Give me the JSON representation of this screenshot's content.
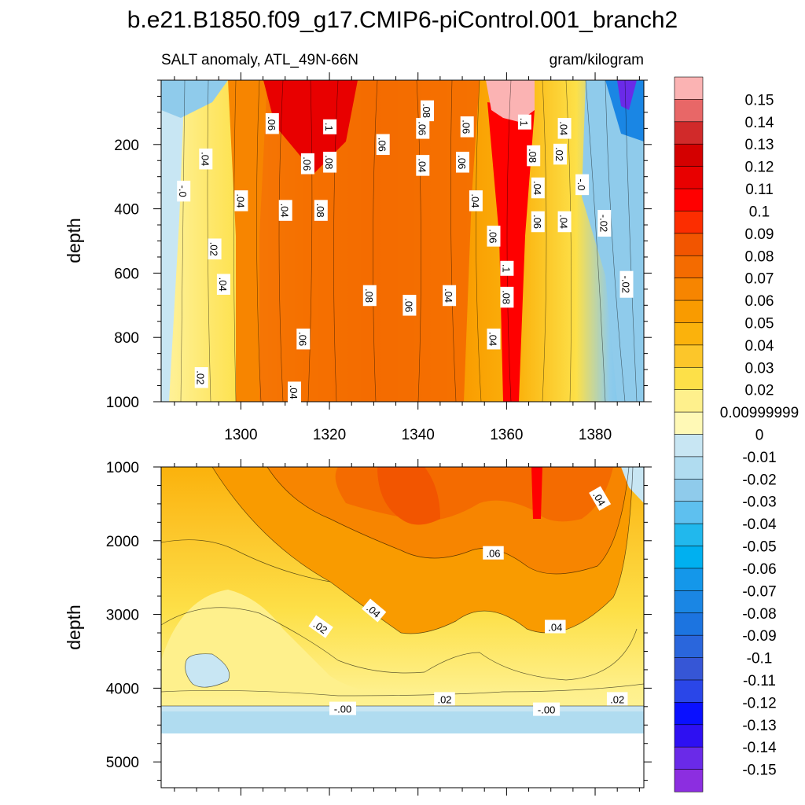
{
  "chart_data": {
    "type": "heatmap",
    "title": "b.e21.B1850.f09_g17.CMIP6-piControl.001_branch2",
    "subtitle_left": "SALT anomaly, ATL_49N-66N",
    "subtitle_right": "gram/kilogram",
    "ylabel": "depth",
    "xlim": [
      1282,
      1391
    ],
    "x_ticks": [
      "1300",
      "1320",
      "1340",
      "1360",
      "1380"
    ],
    "x_tick_values": [
      1300,
      1320,
      1340,
      1360,
      1380
    ],
    "top_panel": {
      "ylim": [
        0,
        1000
      ],
      "y_ticks": [
        "200",
        "400",
        "600",
        "800",
        "1000"
      ],
      "y_tick_values": [
        200,
        400,
        600,
        800,
        1000
      ],
      "contour_labels": [
        {
          "text": ".06",
          "x": 1307,
          "y": 135
        },
        {
          "text": ".1",
          "x": 1320,
          "y": 145
        },
        {
          "text": ".08",
          "x": 1342,
          "y": 95
        },
        {
          "text": ".06",
          "x": 1351,
          "y": 145
        },
        {
          "text": ".06",
          "x": 1341,
          "y": 150
        },
        {
          "text": ".1",
          "x": 1364,
          "y": 130
        },
        {
          "text": ".04",
          "x": 1373,
          "y": 150
        },
        {
          "text": ".04",
          "x": 1292,
          "y": 245
        },
        {
          "text": ".06",
          "x": 1315,
          "y": 260
        },
        {
          "text": ".08",
          "x": 1320,
          "y": 255
        },
        {
          "text": ".06",
          "x": 1332,
          "y": 200
        },
        {
          "text": ".04",
          "x": 1341,
          "y": 265
        },
        {
          "text": ".06",
          "x": 1350,
          "y": 255
        },
        {
          "text": ".08",
          "x": 1366,
          "y": 235
        },
        {
          "text": ".02",
          "x": 1372,
          "y": 230
        },
        {
          "text": "-.0",
          "x": 1377,
          "y": 325
        },
        {
          "text": "-.0",
          "x": 1287,
          "y": 345
        },
        {
          "text": ".04",
          "x": 1300,
          "y": 375
        },
        {
          "text": ".04",
          "x": 1310,
          "y": 405
        },
        {
          "text": ".08",
          "x": 1318,
          "y": 405
        },
        {
          "text": ".04",
          "x": 1367,
          "y": 335
        },
        {
          "text": ".04",
          "x": 1353,
          "y": 375
        },
        {
          "text": ".06",
          "x": 1367,
          "y": 440
        },
        {
          "text": ".04",
          "x": 1373,
          "y": 440
        },
        {
          "text": "-.02",
          "x": 1382,
          "y": 445
        },
        {
          "text": ".02",
          "x": 1294,
          "y": 525
        },
        {
          "text": ".06",
          "x": 1357,
          "y": 485
        },
        {
          "text": ".1",
          "x": 1360,
          "y": 585
        },
        {
          "text": ".04",
          "x": 1296,
          "y": 635
        },
        {
          "text": "-.02",
          "x": 1387,
          "y": 635
        },
        {
          "text": ".08",
          "x": 1329,
          "y": 670
        },
        {
          "text": ".06",
          "x": 1338,
          "y": 700
        },
        {
          "text": ".04",
          "x": 1347,
          "y": 670
        },
        {
          "text": ".08",
          "x": 1360,
          "y": 675
        },
        {
          "text": ".06",
          "x": 1314,
          "y": 805
        },
        {
          "text": ".04",
          "x": 1357,
          "y": 805
        },
        {
          "text": ".02",
          "x": 1291,
          "y": 925
        },
        {
          "text": ".04",
          "x": 1312,
          "y": 970
        }
      ]
    },
    "bottom_panel": {
      "ylim": [
        1000,
        5350
      ],
      "y_ticks": [
        "1000",
        "2000",
        "3000",
        "4000",
        "5000"
      ],
      "y_tick_values": [
        1000,
        2000,
        3000,
        4000,
        5000
      ],
      "ocean_floor": 4620,
      "contour_labels": [
        {
          "text": ".04",
          "x": 1381,
          "y": 1430
        },
        {
          "text": ".06",
          "x": 1357,
          "y": 2170
        },
        {
          "text": ".04",
          "x": 1330,
          "y": 2950
        },
        {
          "text": ".02",
          "x": 1318,
          "y": 3170
        },
        {
          "text": ".04",
          "x": 1371,
          "y": 3170
        },
        {
          "text": "-.00",
          "x": 1323,
          "y": 4280
        },
        {
          "text": ".02",
          "x": 1346,
          "y": 4150
        },
        {
          "text": "-.00",
          "x": 1369,
          "y": 4290
        },
        {
          "text": ".02",
          "x": 1385,
          "y": 4150
        }
      ]
    },
    "colorbar": {
      "labels": [
        "0.15",
        "0.14",
        "0.13",
        "0.12",
        "0.11",
        "0.1",
        "0.09",
        "0.08",
        "0.07",
        "0.06",
        "0.05",
        "0.04",
        "0.03",
        "0.02",
        "0.00999999",
        "0",
        "-0.01",
        "-0.02",
        "-0.03",
        "-0.04",
        "-0.05",
        "-0.06",
        "-0.07",
        "-0.08",
        "-0.09",
        "-0.1",
        "-0.11",
        "-0.12",
        "-0.13",
        "-0.14",
        "-0.15"
      ],
      "colors": [
        "#fbb3b3",
        "#e86767",
        "#d12a2a",
        "#d40000",
        "#e80000",
        "#ff0000",
        "#fc2d00",
        "#f25500",
        "#f46b00",
        "#f78500",
        "#f99b00",
        "#fbb20c",
        "#fcc62a",
        "#fde048",
        "#fef08c",
        "#fff9b6",
        "#c8e6f3",
        "#b0dcf0",
        "#8fcbeb",
        "#5ec0ef",
        "#21b8ed",
        "#00b0f0",
        "#1497ea",
        "#1a86e4",
        "#1c74e0",
        "#2a66dc",
        "#3656d6",
        "#2a46e8",
        "#0a10ff",
        "#2e10f2",
        "#6a2ae8",
        "#8c2ee0"
      ]
    }
  }
}
